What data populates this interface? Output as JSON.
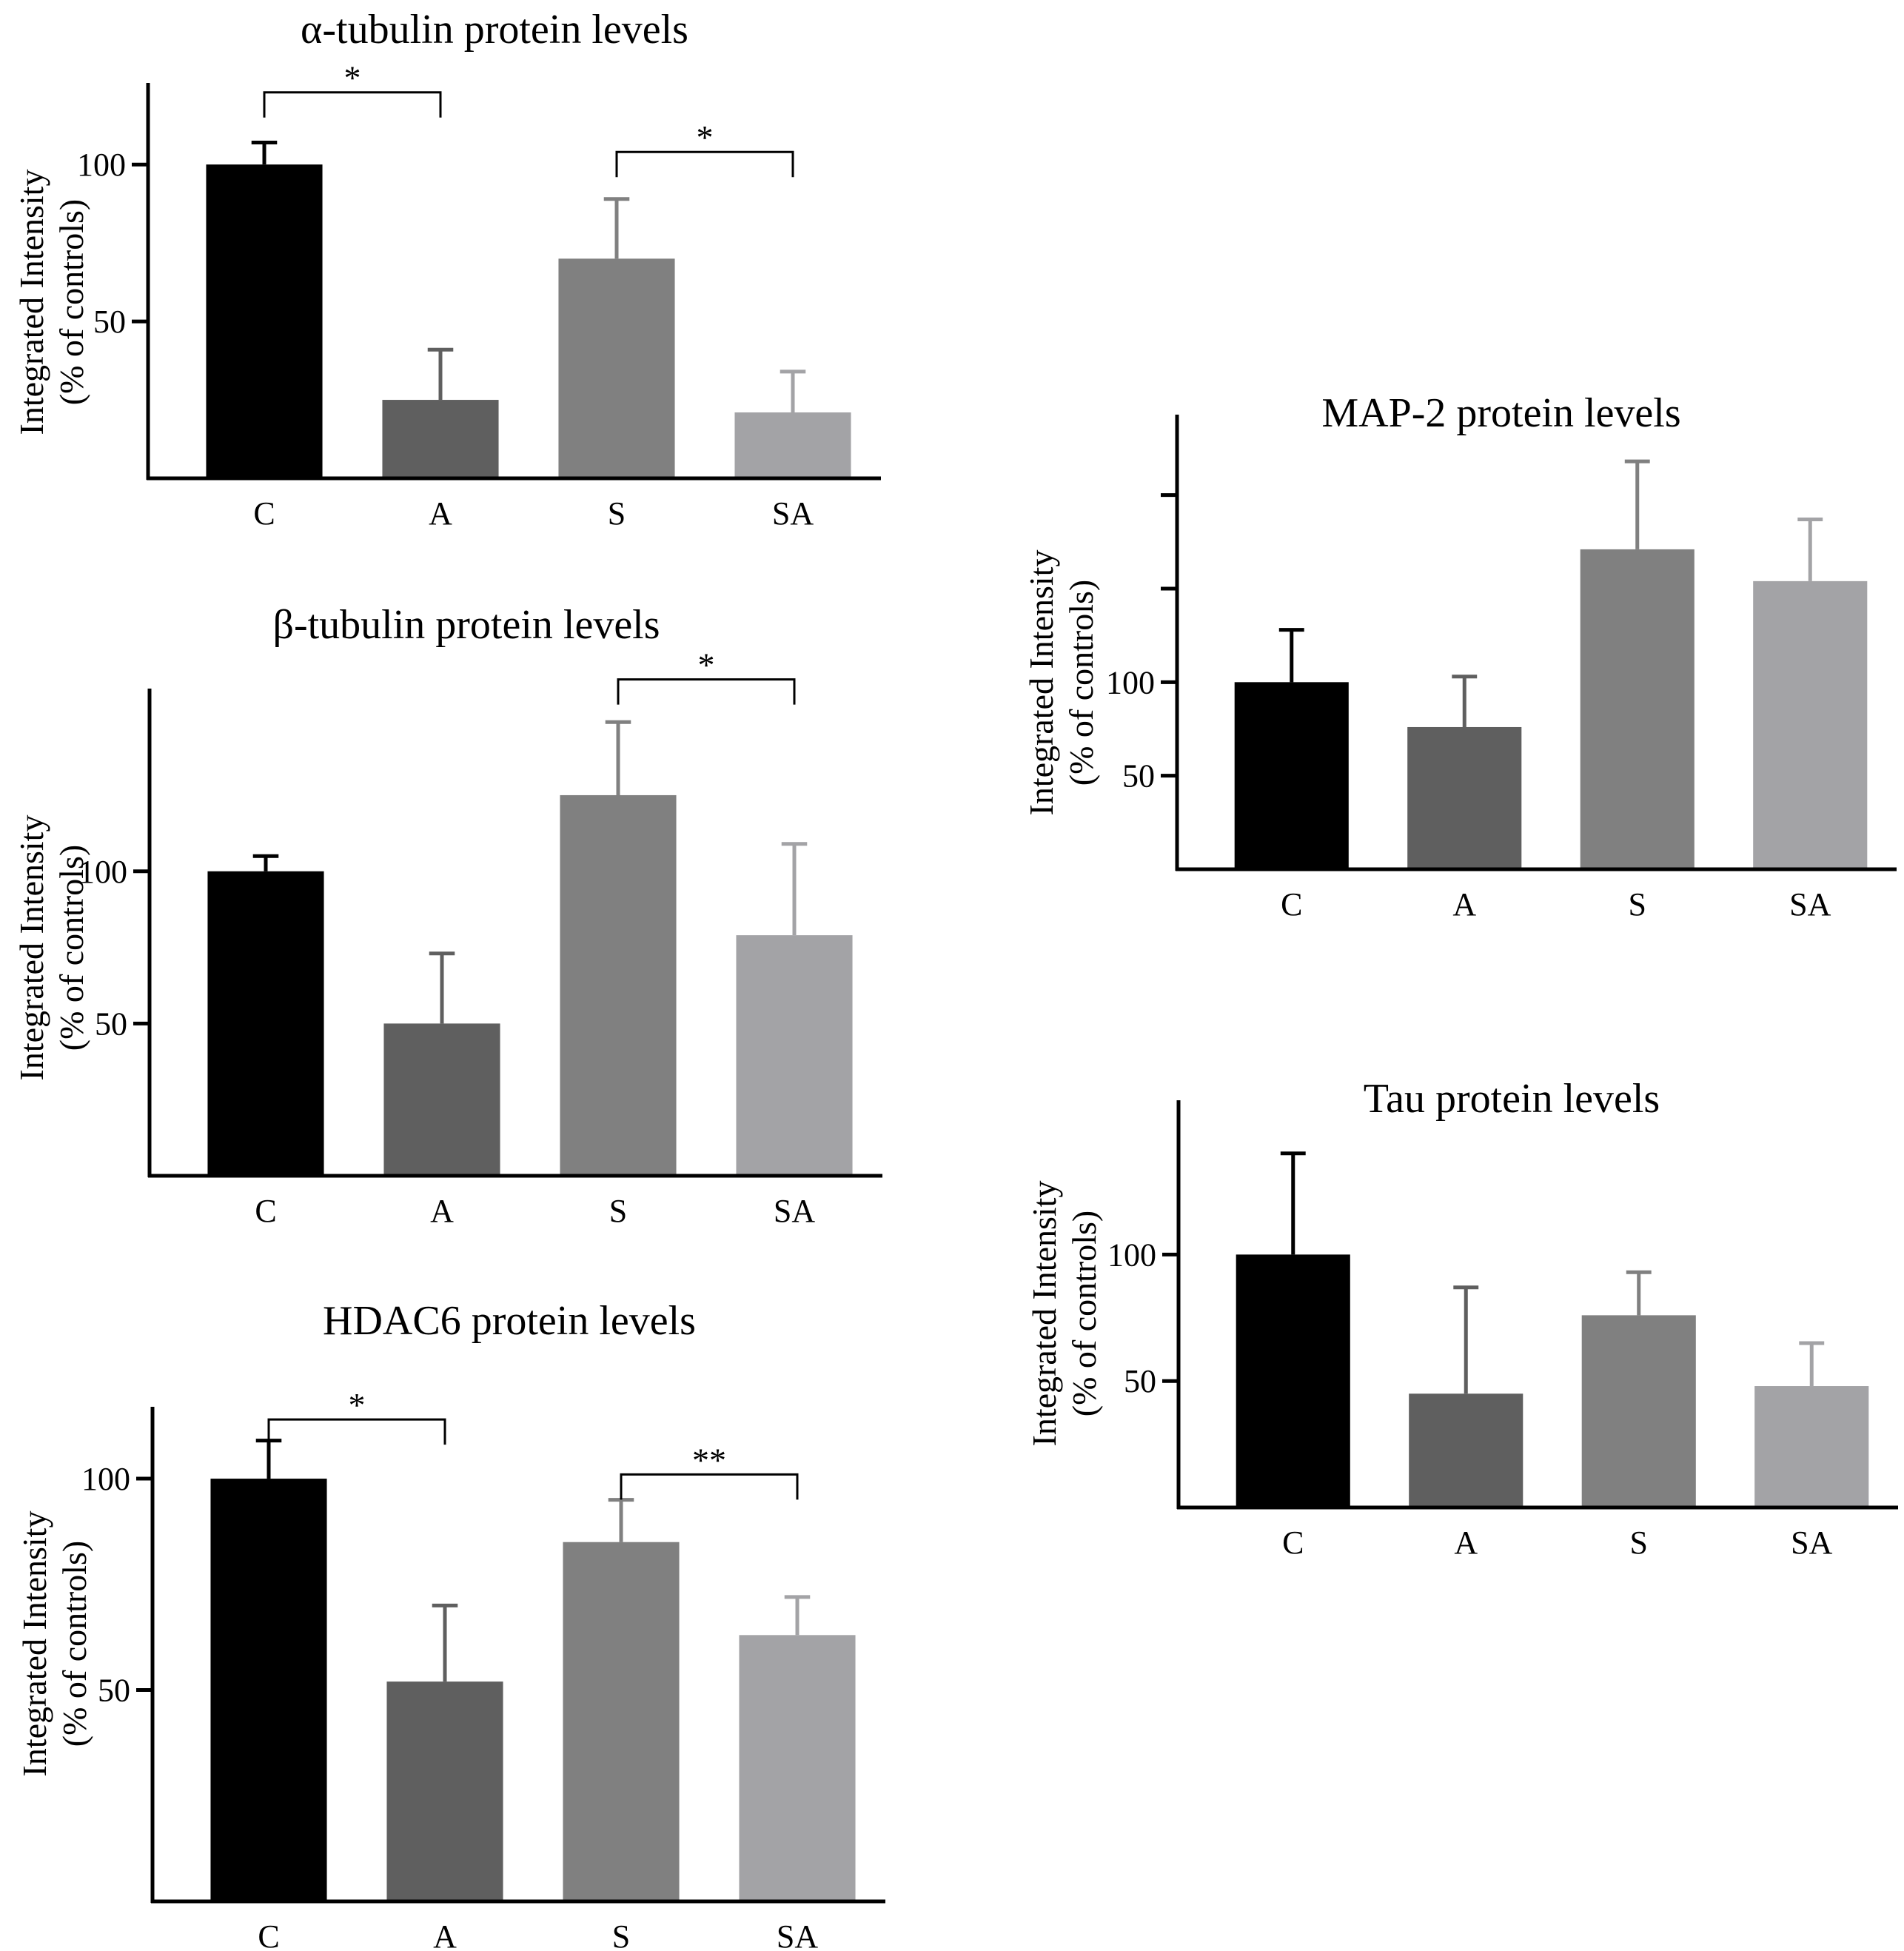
{
  "figure": {
    "colors": {
      "C": "#000000",
      "A": "#5f5f5f",
      "S": "#808080",
      "SA": "#a3a3a6",
      "axis": "#000000"
    }
  },
  "chart_data": [
    {
      "id": "alpha",
      "type": "bar",
      "title": "α-tubulin protein levels",
      "ylabel_line1": "Integrated Intensity",
      "ylabel_line2": "(% of controls)",
      "categories": [
        "C",
        "A",
        "S",
        "SA"
      ],
      "values": [
        100,
        25,
        70,
        21
      ],
      "errors": [
        7,
        16,
        19,
        13
      ],
      "ylim": [
        0,
        126
      ],
      "yticks": [
        50,
        100
      ],
      "significance": [
        {
          "from": 0,
          "to": 1,
          "label": "*",
          "y": 123
        },
        {
          "from": 2,
          "to": 3,
          "label": "*",
          "y": 104
        }
      ]
    },
    {
      "id": "beta",
      "type": "bar",
      "title": "β-tubulin protein levels",
      "ylabel_line1": "Integrated Intensity",
      "ylabel_line2": "(% of controls)",
      "categories": [
        "C",
        "A",
        "S",
        "SA"
      ],
      "values": [
        100,
        50,
        125,
        79
      ],
      "errors": [
        5,
        23,
        24,
        30
      ],
      "ylim": [
        0,
        160
      ],
      "yticks": [
        50,
        100
      ],
      "significance": [
        {
          "from": 2,
          "to": 3,
          "label": "*",
          "y": 163
        }
      ]
    },
    {
      "id": "hdac6",
      "type": "bar",
      "title": "HDAC6 protein levels",
      "ylabel_line1": "Integrated Intensity",
      "ylabel_line2": "(% of controls)",
      "categories": [
        "C",
        "A",
        "S",
        "SA"
      ],
      "values": [
        100,
        52,
        85,
        63
      ],
      "errors": [
        9,
        18,
        10,
        9
      ],
      "ylim": [
        0,
        117
      ],
      "yticks": [
        50,
        100
      ],
      "significance": [
        {
          "from": 0,
          "to": 1,
          "label": "*",
          "y": 114
        },
        {
          "from": 2,
          "to": 3,
          "label": "**",
          "y": 101
        }
      ]
    },
    {
      "id": "map2",
      "type": "bar",
      "title": "MAP-2 protein levels",
      "ylabel_line1": "Integrated Intensity",
      "ylabel_line2": "(% of controls)",
      "categories": [
        "C",
        "A",
        "S",
        "SA"
      ],
      "values": [
        100,
        76,
        171,
        154
      ],
      "errors": [
        28,
        27,
        47,
        33
      ],
      "ylim": [
        0,
        243
      ],
      "yticks": [
        50,
        100
      ],
      "minor_ticks": [
        150,
        200
      ],
      "significance": []
    },
    {
      "id": "tau",
      "type": "bar",
      "title": "Tau protein levels",
      "ylabel_line1": "Integrated Intensity",
      "ylabel_line2": "(% of controls)",
      "categories": [
        "C",
        "A",
        "S",
        "SA"
      ],
      "values": [
        100,
        45,
        76,
        48
      ],
      "errors": [
        40,
        42,
        17,
        17
      ],
      "ylim": [
        0,
        161
      ],
      "yticks": [
        50,
        100
      ],
      "significance": []
    }
  ]
}
